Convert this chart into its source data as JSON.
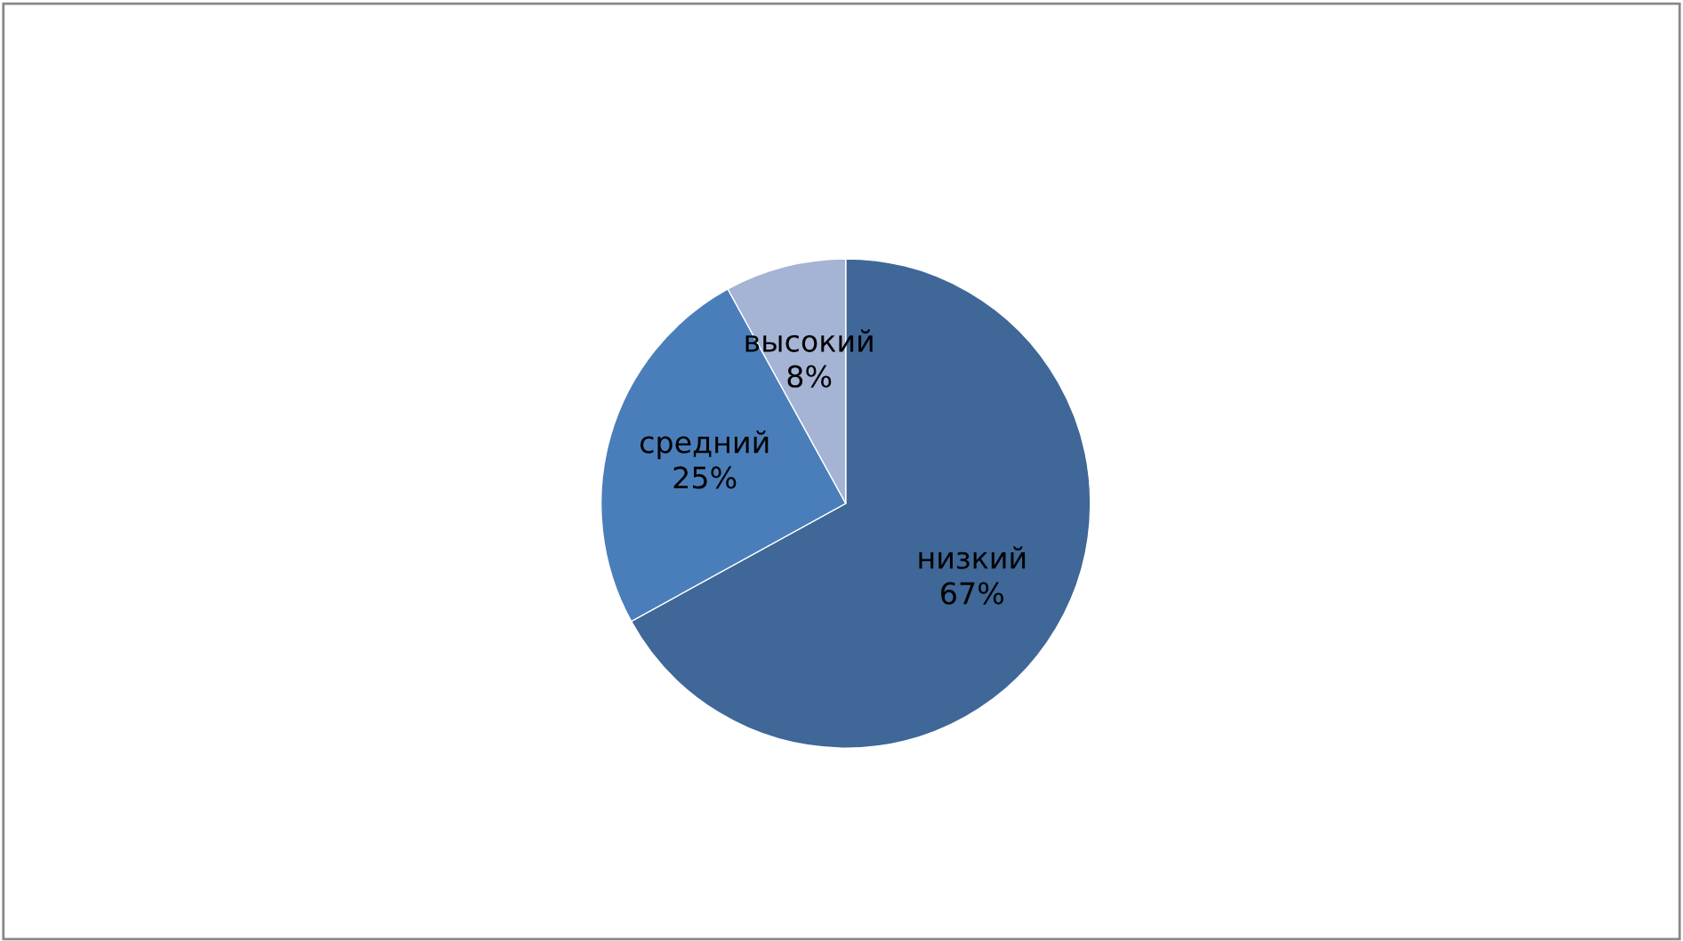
{
  "chart_data": {
    "type": "pie",
    "categories": [
      "низкий",
      "средний",
      "высокий"
    ],
    "values": [
      67,
      25,
      8
    ],
    "colors": [
      "#3f6797",
      "#4a7eba",
      "#a5b4d4"
    ],
    "value_labels": [
      "67%",
      "25%",
      "8%"
    ],
    "legend": false
  }
}
